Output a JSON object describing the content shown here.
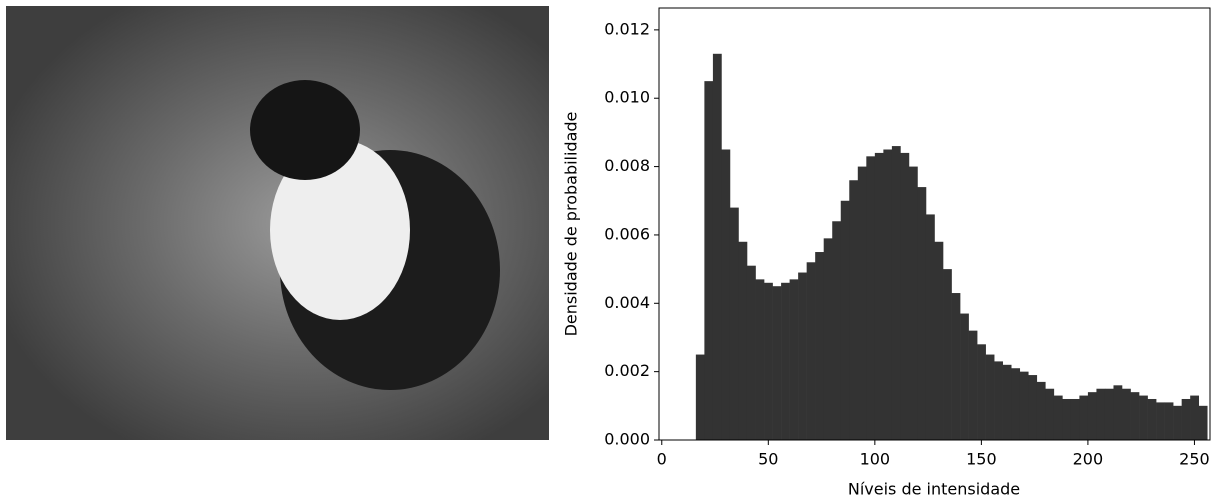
{
  "chart_data": {
    "type": "histogram",
    "xlabel": "Níveis de intensidade",
    "ylabel": "Densidade de probabilidade",
    "color": "#333333",
    "bins": [
      0,
      4,
      8,
      12,
      16,
      20,
      24,
      28,
      32,
      36,
      40,
      44,
      48,
      52,
      56,
      60,
      64,
      68,
      72,
      76,
      80,
      84,
      88,
      92,
      96,
      100,
      104,
      108,
      112,
      116,
      120,
      124,
      128,
      132,
      136,
      140,
      144,
      148,
      152,
      156,
      160,
      164,
      168,
      172,
      176,
      180,
      184,
      188,
      192,
      196,
      200,
      204,
      208,
      212,
      216,
      220,
      224,
      228,
      232,
      236,
      240,
      244,
      248,
      252,
      256
    ],
    "values": [
      0,
      0,
      0,
      0,
      0.0025,
      0.0105,
      0.0113,
      0.0085,
      0.0068,
      0.0058,
      0.0051,
      0.0047,
      0.0046,
      0.0045,
      0.0046,
      0.0047,
      0.0049,
      0.0052,
      0.0055,
      0.0059,
      0.0064,
      0.007,
      0.0076,
      0.008,
      0.0083,
      0.0084,
      0.0085,
      0.0086,
      0.0084,
      0.008,
      0.0074,
      0.0066,
      0.0058,
      0.005,
      0.0043,
      0.0037,
      0.0032,
      0.0028,
      0.0025,
      0.0023,
      0.0022,
      0.0021,
      0.002,
      0.0019,
      0.0017,
      0.0015,
      0.0013,
      0.0012,
      0.0012,
      0.0013,
      0.0014,
      0.0015,
      0.0015,
      0.0016,
      0.0015,
      0.0014,
      0.0013,
      0.0012,
      0.0011,
      0.0011,
      0.001,
      0.0012,
      0.0013,
      0.001
    ],
    "xlim": [
      -1.3,
      257.3
    ],
    "ylim": [
      0,
      0.01264
    ],
    "xticks": [
      0,
      50,
      100,
      150,
      200,
      250
    ],
    "yticks": [
      {
        "value": 0,
        "label": "0.000"
      },
      {
        "value": 0.002,
        "label": "0.002"
      },
      {
        "value": 0.004,
        "label": "0.004"
      },
      {
        "value": 0.006,
        "label": "0.006"
      },
      {
        "value": 0.008,
        "label": "0.008"
      },
      {
        "value": 0.01,
        "label": "0.010"
      },
      {
        "value": 0.012,
        "label": "0.012"
      }
    ]
  }
}
